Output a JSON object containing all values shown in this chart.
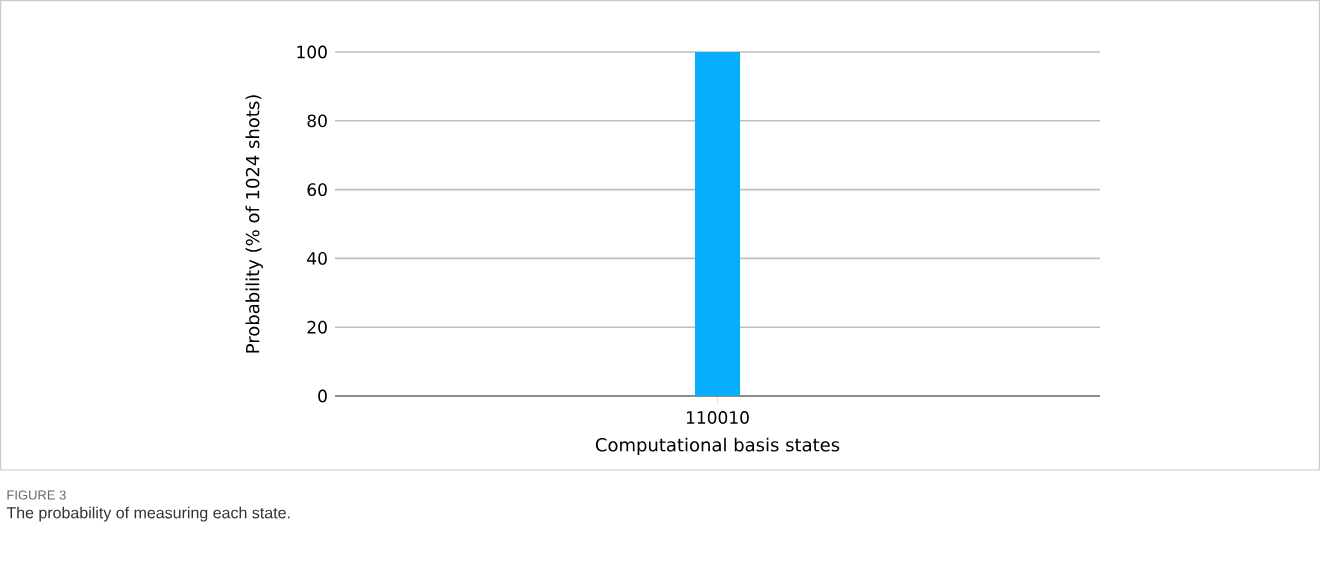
{
  "chart_data": {
    "type": "bar",
    "categories": [
      "110010"
    ],
    "values": [
      100
    ],
    "color": "#06aefc",
    "ylim": [
      0,
      100
    ],
    "yticks": [
      0,
      20,
      40,
      60,
      80,
      100
    ],
    "grid": "y",
    "xlabel": "Computational basis states",
    "ylabel": "Probability (% of 1024 shots)",
    "annotations": [
      "FIGURE 3",
      "The probability of measuring each state."
    ]
  }
}
